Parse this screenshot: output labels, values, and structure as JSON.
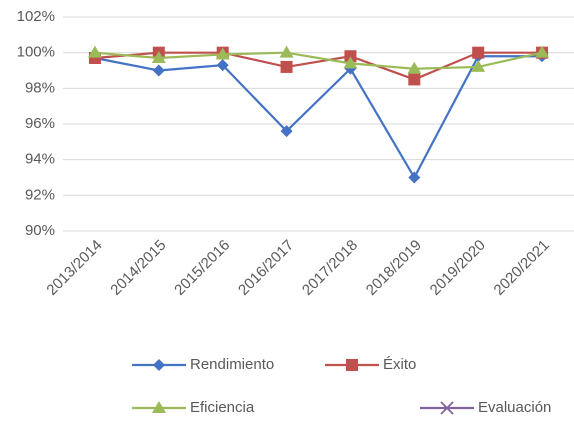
{
  "chart_data": {
    "type": "line",
    "categories": [
      "2013/2014",
      "2014/2015",
      "2015/2016",
      "2016/2017",
      "2017/2018",
      "2018/2019",
      "2019/2020",
      "2020/2021"
    ],
    "series": [
      {
        "name": "Rendimiento",
        "color": "#4472c4",
        "marker": "diamond",
        "values": [
          99.7,
          99.0,
          99.3,
          95.6,
          99.1,
          93.0,
          99.8,
          99.8
        ]
      },
      {
        "name": "Éxito",
        "color": "#c0504d",
        "marker": "square",
        "values": [
          99.7,
          100,
          100,
          99.2,
          99.8,
          98.5,
          100,
          100
        ]
      },
      {
        "name": "Eficiencia",
        "color": "#9bbb59",
        "marker": "triangle",
        "values": [
          100,
          99.7,
          99.9,
          100,
          99.4,
          99.1,
          99.2,
          100
        ]
      },
      {
        "name": "Evaluación",
        "color": "#8064a2",
        "marker": "x",
        "values": [
          null,
          null,
          null,
          null,
          null,
          null,
          null,
          null
        ]
      }
    ],
    "ylim": [
      90,
      102
    ],
    "yticks": [
      {
        "value": 90,
        "label": "90%"
      },
      {
        "value": 92,
        "label": "92%"
      },
      {
        "value": 94,
        "label": "94%"
      },
      {
        "value": 96,
        "label": "96%"
      },
      {
        "value": 98,
        "label": "98%"
      },
      {
        "value": 100,
        "label": "100%"
      },
      {
        "value": 102,
        "label": "102%"
      }
    ],
    "grid": true,
    "legend": "bottom"
  }
}
